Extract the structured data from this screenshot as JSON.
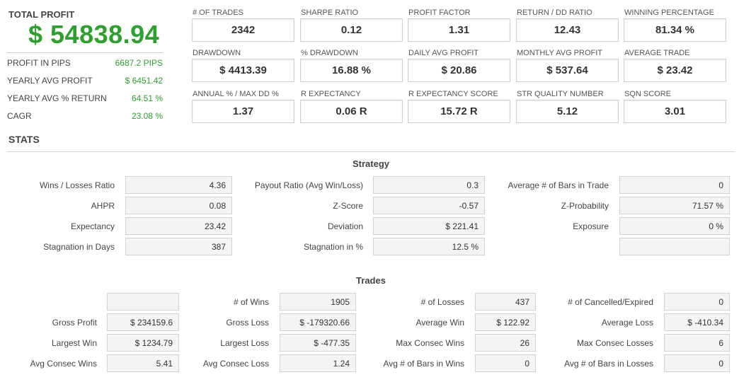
{
  "summary": {
    "total_profit_label": "TOTAL PROFIT",
    "total_profit_value": "$ 54838.94",
    "rows": [
      {
        "label": "PROFIT IN PIPS",
        "value": "6687.2 PIPS"
      },
      {
        "label": "YEARLY AVG PROFIT",
        "value": "$ 6451.42"
      },
      {
        "label": "YEARLY AVG % RETURN",
        "value": "64.51 %"
      },
      {
        "label": "CAGR",
        "value": "23.08 %"
      }
    ]
  },
  "metrics": [
    {
      "label": "# OF TRADES",
      "value": "2342"
    },
    {
      "label": "SHARPE RATIO",
      "value": "0.12"
    },
    {
      "label": "PROFIT FACTOR",
      "value": "1.31"
    },
    {
      "label": "RETURN / DD RATIO",
      "value": "12.43"
    },
    {
      "label": "WINNING PERCENTAGE",
      "value": "81.34 %"
    },
    {
      "label": "DRAWDOWN",
      "value": "$ 4413.39"
    },
    {
      "label": "% DRAWDOWN",
      "value": "16.88 %"
    },
    {
      "label": "DAILY AVG PROFIT",
      "value": "$ 20.86"
    },
    {
      "label": "MONTHLY AVG PROFIT",
      "value": "$ 537.64"
    },
    {
      "label": "AVERAGE TRADE",
      "value": "$ 23.42"
    },
    {
      "label": "ANNUAL % / MAX DD %",
      "value": "1.37"
    },
    {
      "label": "R EXPECTANCY",
      "value": "0.06 R"
    },
    {
      "label": "R EXPECTANCY SCORE",
      "value": "15.72 R"
    },
    {
      "label": "STR QUALITY NUMBER",
      "value": "5.12"
    },
    {
      "label": "SQN SCORE",
      "value": "3.01"
    }
  ],
  "stats": {
    "title": "STATS",
    "strategy": {
      "title": "Strategy",
      "rows": [
        [
          {
            "label": "Wins / Losses Ratio",
            "value": "4.36"
          },
          {
            "label": "Payout Ratio (Avg Win/Loss)",
            "value": "0.3"
          },
          {
            "label": "Average # of Bars in Trade",
            "value": "0"
          }
        ],
        [
          {
            "label": "AHPR",
            "value": "0.08"
          },
          {
            "label": "Z-Score",
            "value": "-0.57"
          },
          {
            "label": "Z-Probability",
            "value": "71.57 %"
          }
        ],
        [
          {
            "label": "Expectancy",
            "value": "23.42"
          },
          {
            "label": "Deviation",
            "value": "$ 221.41"
          },
          {
            "label": "Exposure",
            "value": "0 %"
          }
        ],
        [
          {
            "label": "Stagnation in Days",
            "value": "387"
          },
          {
            "label": "Stagnation in %",
            "value": "12.5 %"
          },
          {
            "label": "",
            "value": ""
          }
        ]
      ]
    },
    "trades": {
      "title": "Trades",
      "rows": [
        [
          {
            "label": "",
            "value": ""
          },
          {
            "label": "# of Wins",
            "value": "1905"
          },
          {
            "label": "# of Losses",
            "value": "437"
          },
          {
            "label": "# of Cancelled/Expired",
            "value": "0"
          }
        ],
        [
          {
            "label": "Gross Profit",
            "value": "$ 234159.6"
          },
          {
            "label": "Gross Loss",
            "value": "$ -179320.66"
          },
          {
            "label": "Average Win",
            "value": "$ 122.92"
          },
          {
            "label": "Average Loss",
            "value": "$ -410.34"
          }
        ],
        [
          {
            "label": "Largest Win",
            "value": "$ 1234.79"
          },
          {
            "label": "Largest Loss",
            "value": "$ -477.35"
          },
          {
            "label": "Max Consec Wins",
            "value": "26"
          },
          {
            "label": "Max Consec Losses",
            "value": "6"
          }
        ],
        [
          {
            "label": "Avg Consec Wins",
            "value": "5.41"
          },
          {
            "label": "Avg Consec Loss",
            "value": "1.24"
          },
          {
            "label": "Avg # of Bars in Wins",
            "value": "0"
          },
          {
            "label": "Avg # of Bars in Losses",
            "value": "0"
          }
        ]
      ]
    }
  }
}
